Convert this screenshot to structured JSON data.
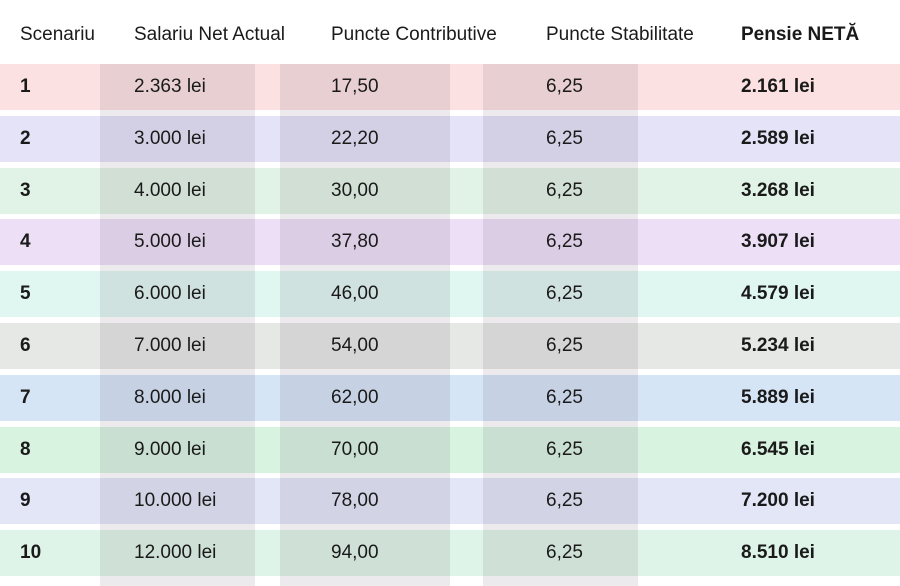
{
  "table": {
    "columns": [
      "Scenariu",
      "Salariu Net Actual",
      "Puncte Contributive",
      "Puncte Stabilitate",
      "Pensie NETĂ"
    ],
    "rows": [
      [
        "1",
        "2.363 lei",
        "17,50",
        "6,25",
        "2.161 lei"
      ],
      [
        "2",
        "3.000 lei",
        "22,20",
        "6,25",
        "2.589 lei"
      ],
      [
        "3",
        "4.000 lei",
        "30,00",
        "6,25",
        "3.268 lei"
      ],
      [
        "4",
        "5.000 lei",
        "37,80",
        "6,25",
        "3.907 lei"
      ],
      [
        "5",
        "6.000 lei",
        "46,00",
        "6,25",
        "4.579 lei"
      ],
      [
        "6",
        "7.000 lei",
        "54,00",
        "6,25",
        "5.234 lei"
      ],
      [
        "7",
        "8.000 lei",
        "62,00",
        "6,25",
        "5.889 lei"
      ],
      [
        "8",
        "9.000 lei",
        "70,00",
        "6,25",
        "6.545 lei"
      ],
      [
        "9",
        "10.000 lei",
        "78,00",
        "6,25",
        "7.200 lei"
      ],
      [
        "10",
        "12.000 lei",
        "94,00",
        "6,25",
        "8.510 lei"
      ]
    ]
  }
}
